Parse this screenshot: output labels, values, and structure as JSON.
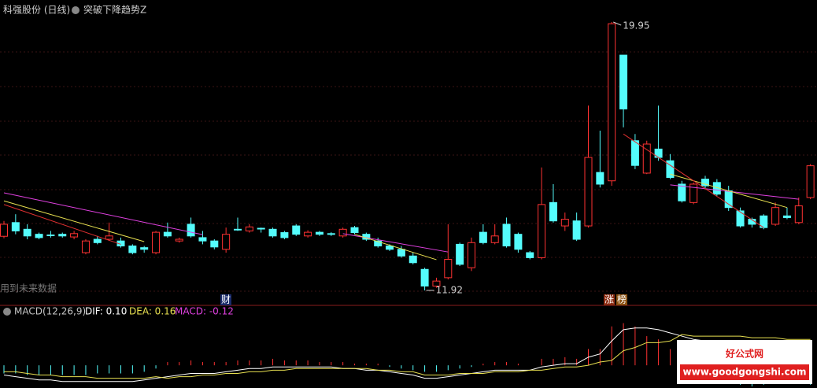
{
  "header": {
    "stock": "科强股份 (日线)",
    "indicator": "突破下降趋势Z"
  },
  "notes": {
    "future": "用到未来数据",
    "cai": "财",
    "zhang": "涨",
    "bang": "榜"
  },
  "chart_data": {
    "type": "candlestick",
    "ylim": [
      11.52,
      20.61
    ],
    "high_label": 19.95,
    "low_label": 11.92,
    "up_color": "#ff3232",
    "down_color": "#54fcfc",
    "open": [
      13.54,
      13.95,
      13.75,
      13.6,
      13.58,
      13.6,
      13.52,
      13.05,
      13.45,
      13.45,
      13.4,
      13.25,
      13.2,
      13.05,
      13.66,
      13.4,
      13.9,
      13.5,
      13.4,
      13.15,
      13.75,
      13.7,
      13.78,
      13.75,
      13.65,
      13.85,
      13.55,
      13.66,
      13.62,
      13.55,
      13.8,
      13.6,
      13.4,
      13.25,
      13.15,
      12.95,
      12.55,
      12.05,
      12.3,
      13.3,
      12.6,
      13.66,
      13.35,
      13.9,
      13.6,
      13.05,
      12.9,
      14.55,
      13.85,
      14.0,
      13.85,
      15.45,
      15.2,
      18.96,
      16.4,
      15.43,
      16.15,
      15.8,
      15.1,
      14.55,
      15.25,
      15.15,
      14.9,
      14.3,
      14.05,
      14.15,
      13.9,
      14.15,
      13.95,
      14.7
    ],
    "high": [
      14.0,
      14.2,
      13.9,
      13.65,
      13.7,
      13.65,
      13.7,
      13.45,
      13.55,
      13.95,
      13.5,
      13.3,
      13.25,
      13.7,
      13.95,
      13.5,
      14.1,
      13.7,
      13.45,
      13.8,
      14.1,
      13.9,
      13.8,
      13.8,
      13.7,
      13.9,
      13.72,
      13.7,
      13.66,
      13.8,
      13.85,
      13.65,
      13.5,
      13.3,
      13.25,
      13.05,
      12.6,
      12.3,
      13.9,
      13.35,
      13.5,
      13.9,
      13.9,
      14.1,
      13.65,
      13.1,
      15.6,
      15.1,
      14.25,
      14.25,
      17.45,
      16.7,
      19.95,
      18.96,
      16.6,
      16.4,
      17.45,
      16.0,
      15.2,
      15.15,
      15.35,
      15.25,
      15.05,
      14.4,
      14.1,
      14.2,
      14.55,
      14.4,
      14.7,
      15.7
    ],
    "low": [
      13.48,
      13.6,
      13.45,
      13.45,
      13.5,
      13.5,
      13.45,
      13.0,
      13.3,
      13.4,
      13.2,
      13.0,
      13.05,
      13.0,
      13.5,
      13.35,
      13.5,
      13.3,
      13.15,
      13.05,
      13.7,
      13.65,
      13.65,
      13.5,
      13.45,
      13.55,
      13.5,
      13.55,
      13.55,
      13.5,
      13.6,
      13.4,
      13.2,
      13.1,
      12.9,
      12.7,
      11.92,
      12.0,
      12.25,
      12.65,
      12.5,
      13.3,
      13.3,
      13.2,
      13.05,
      12.85,
      12.85,
      13.95,
      13.7,
      13.4,
      13.8,
      15.0,
      15.05,
      16.8,
      15.55,
      15.4,
      15.8,
      15.25,
      14.55,
      14.5,
      14.95,
      14.75,
      14.3,
      13.8,
      13.8,
      13.75,
      13.85,
      14.05,
      13.9,
      14.65
    ],
    "close": [
      13.9,
      13.7,
      13.55,
      13.5,
      13.56,
      13.55,
      13.62,
      13.4,
      13.35,
      13.55,
      13.25,
      13.05,
      13.15,
      13.66,
      13.55,
      13.45,
      13.55,
      13.4,
      13.22,
      13.6,
      13.73,
      13.82,
      13.76,
      13.55,
      13.5,
      13.6,
      13.66,
      13.6,
      13.6,
      13.75,
      13.65,
      13.45,
      13.25,
      13.15,
      12.95,
      12.75,
      12.05,
      12.2,
      12.85,
      12.7,
      13.35,
      13.35,
      13.55,
      13.25,
      13.15,
      12.9,
      14.49,
      14.0,
      14.05,
      13.45,
      15.9,
      15.1,
      19.9,
      17.35,
      15.66,
      16.3,
      15.9,
      15.3,
      14.6,
      15.1,
      15.05,
      14.8,
      14.4,
      13.85,
      13.9,
      13.8,
      14.4,
      14.1,
      14.45,
      15.65
    ],
    "overlay_lines": [
      {
        "color": "#e040e0",
        "points": [
          [
            0,
            14.84
          ],
          [
            17,
            13.59
          ]
        ]
      },
      {
        "color": "#e040e0",
        "points": [
          [
            29,
            13.62
          ],
          [
            38,
            13.07
          ]
        ]
      },
      {
        "color": "#e040e0",
        "points": [
          [
            57,
            15.08
          ],
          [
            68,
            14.65
          ]
        ]
      },
      {
        "color": "#e8e050",
        "points": [
          [
            0,
            14.6
          ],
          [
            12,
            13.38
          ]
        ]
      },
      {
        "color": "#e8e050",
        "points": [
          [
            30,
            13.6
          ],
          [
            37,
            12.84
          ]
        ]
      },
      {
        "color": "#e8e050",
        "points": [
          [
            57,
            15.4
          ],
          [
            67,
            14.4
          ]
        ]
      },
      {
        "color": "#e03030",
        "points": [
          [
            0,
            14.49
          ],
          [
            10,
            13.3
          ]
        ]
      },
      {
        "color": "#e03030",
        "points": [
          [
            53,
            16.6
          ],
          [
            65,
            13.8
          ]
        ]
      }
    ]
  },
  "macd_data": {
    "type": "macd",
    "params": "MACD(12,26,9)",
    "dif_label": "DIF: 0.10",
    "dea_label": "DEA: 0.16",
    "macd_label": "MACD: -0.12",
    "ylim": [
      -0.14,
      0.36
    ],
    "dif_color": "#ffffff",
    "dea_color": "#e8e050",
    "macd": [
      -0.05,
      -0.05,
      -0.06,
      -0.06,
      -0.06,
      -0.06,
      -0.06,
      -0.06,
      -0.05,
      -0.05,
      -0.05,
      -0.05,
      -0.04,
      -0.02,
      0.02,
      0.02,
      0.03,
      0.02,
      0.02,
      0.02,
      0.03,
      0.03,
      0.03,
      0.04,
      0.03,
      0.03,
      0.03,
      0.02,
      0.02,
      0.02,
      0.01,
      0.01,
      0.01,
      -0.01,
      -0.02,
      -0.03,
      -0.04,
      -0.04,
      -0.03,
      -0.02,
      -0.01,
      0.01,
      0.02,
      0.02,
      0.01,
      0.0,
      0.04,
      0.04,
      0.05,
      0.04,
      0.1,
      0.1,
      0.24,
      0.26,
      0.24,
      0.18,
      0.16,
      0.1,
      -0.02,
      -0.04,
      -0.06,
      -0.08,
      -0.1,
      -0.12,
      -0.13,
      -0.12,
      -0.11,
      -0.1,
      -0.11,
      -0.12
    ],
    "dif": [
      -0.06,
      -0.07,
      -0.08,
      -0.09,
      -0.09,
      -0.1,
      -0.1,
      -0.1,
      -0.1,
      -0.1,
      -0.1,
      -0.1,
      -0.09,
      -0.08,
      -0.07,
      -0.06,
      -0.05,
      -0.05,
      -0.05,
      -0.04,
      -0.03,
      -0.02,
      -0.02,
      -0.01,
      -0.01,
      -0.01,
      -0.01,
      -0.01,
      -0.01,
      -0.02,
      -0.02,
      -0.03,
      -0.03,
      -0.04,
      -0.05,
      -0.06,
      -0.08,
      -0.08,
      -0.07,
      -0.06,
      -0.05,
      -0.04,
      -0.03,
      -0.03,
      -0.03,
      -0.03,
      -0.01,
      0.0,
      0.01,
      0.01,
      0.05,
      0.07,
      0.15,
      0.22,
      0.23,
      0.23,
      0.22,
      0.2,
      0.18,
      0.16,
      0.15,
      0.14,
      0.13,
      0.12,
      0.11,
      0.11,
      0.11,
      0.1,
      0.1,
      0.1
    ],
    "dea": [
      -0.04,
      -0.04,
      -0.05,
      -0.06,
      -0.06,
      -0.07,
      -0.07,
      -0.07,
      -0.08,
      -0.08,
      -0.08,
      -0.08,
      -0.08,
      -0.07,
      -0.08,
      -0.07,
      -0.07,
      -0.06,
      -0.06,
      -0.05,
      -0.05,
      -0.04,
      -0.04,
      -0.03,
      -0.03,
      -0.02,
      -0.02,
      -0.02,
      -0.02,
      -0.02,
      -0.02,
      -0.02,
      -0.03,
      -0.03,
      -0.04,
      -0.04,
      -0.06,
      -0.06,
      -0.06,
      -0.05,
      -0.05,
      -0.05,
      -0.04,
      -0.04,
      -0.04,
      -0.03,
      -0.03,
      -0.02,
      -0.01,
      -0.01,
      0.0,
      0.02,
      0.03,
      0.09,
      0.11,
      0.14,
      0.14,
      0.15,
      0.19,
      0.18,
      0.18,
      0.18,
      0.18,
      0.18,
      0.17,
      0.17,
      0.17,
      0.16,
      0.16,
      0.16
    ]
  },
  "watermark": {
    "title": "好公式网",
    "url": "www.goodgongshi.com"
  }
}
